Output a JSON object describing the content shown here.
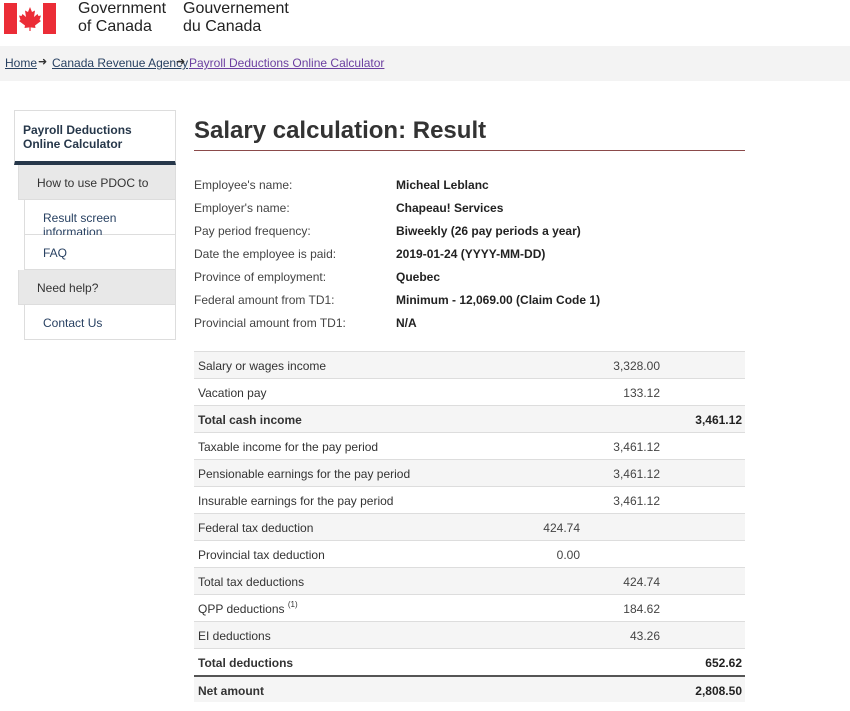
{
  "header": {
    "signature_en_line1": "Government",
    "signature_en_line2": "of Canada",
    "signature_fr_line1": "Gouvernement",
    "signature_fr_line2": "du Canada",
    "flag_icon": "canada-flag-icon",
    "colors": {
      "flag_red": "#eb2d37"
    }
  },
  "breadcrumb": {
    "items": [
      "Home",
      "Canada Revenue Agency",
      "Payroll Deductions Online Calculator"
    ]
  },
  "sidebar": {
    "title": "Payroll Deductions Online Calculator",
    "items": [
      {
        "label": "How to use PDOC to",
        "kind": "section"
      },
      {
        "label": "Result screen information",
        "kind": "sub"
      },
      {
        "label": "FAQ",
        "kind": "sub"
      },
      {
        "label": "Need help?",
        "kind": "section"
      },
      {
        "label": "Contact Us",
        "kind": "sub"
      }
    ]
  },
  "main": {
    "title": "Salary calculation: Result",
    "info": [
      {
        "label": "Employee's name:",
        "value": "Micheal Leblanc"
      },
      {
        "label": "Employer's name:",
        "value": "Chapeau! Services"
      },
      {
        "label": "Pay period frequency:",
        "value": "Biweekly (26 pay periods a year)"
      },
      {
        "label": "Date the employee is paid:",
        "value": "2019-01-24 (YYYY-MM-DD)"
      },
      {
        "label": "Province of employment:",
        "value": "Quebec"
      },
      {
        "label": "Federal amount from TD1:",
        "value": "Minimum - 12,069.00 (Claim Code 1)"
      },
      {
        "label": "Provincial amount from TD1:",
        "value": "N/A"
      }
    ],
    "results": [
      {
        "label": "Salary or wages income",
        "c1": "",
        "c2": "3,328.00",
        "c3": ""
      },
      {
        "label": "Vacation pay",
        "c1": "",
        "c2": "133.12",
        "c3": ""
      },
      {
        "label": "Total cash income",
        "c1": "",
        "c2": "",
        "c3": "3,461.12"
      },
      {
        "label": "Taxable income for the pay period",
        "c1": "",
        "c2": "3,461.12",
        "c3": ""
      },
      {
        "label": "Pensionable earnings for the pay period",
        "c1": "",
        "c2": "3,461.12",
        "c3": ""
      },
      {
        "label": "Insurable earnings for the pay period",
        "c1": "",
        "c2": "3,461.12",
        "c3": ""
      },
      {
        "label": "Federal tax deduction",
        "c1": "424.74",
        "c2": "",
        "c3": ""
      },
      {
        "label": "Provincial tax deduction",
        "c1": "0.00",
        "c2": "",
        "c3": ""
      },
      {
        "label": "Total tax deductions",
        "c1": "",
        "c2": "424.74",
        "c3": ""
      },
      {
        "label": "QPP deductions",
        "sup": "(1)",
        "c1": "",
        "c2": "184.62",
        "c3": ""
      },
      {
        "label": "EI deductions",
        "c1": "",
        "c2": "43.26",
        "c3": ""
      },
      {
        "label": "Total deductions",
        "c1": "",
        "c2": "",
        "c3": "652.62"
      },
      {
        "label": "Net amount",
        "c1": "",
        "c2": "",
        "c3": "2,808.50"
      }
    ]
  }
}
